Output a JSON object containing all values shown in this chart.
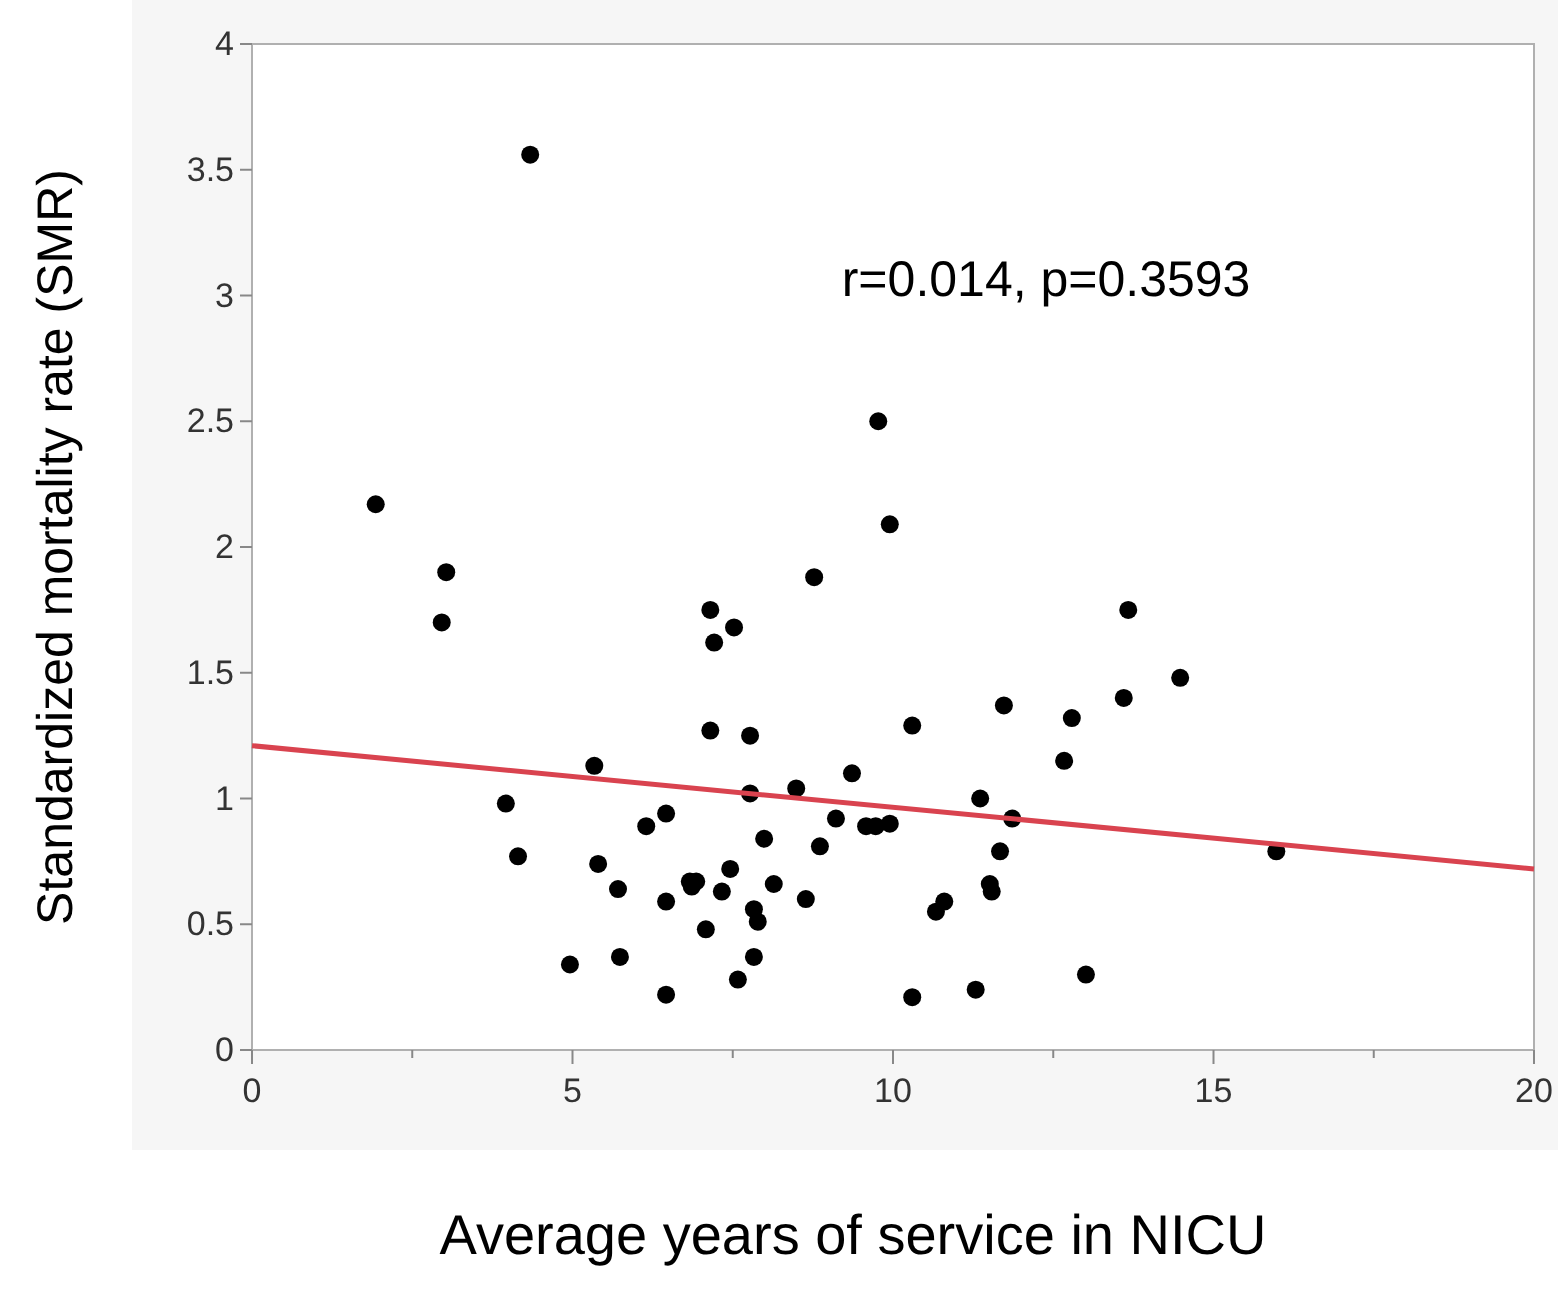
{
  "chart_data": {
    "type": "scatter",
    "xlabel": "Average years of service in NICU",
    "ylabel": "Standardized mortality rate (SMR)",
    "annotations": [
      "r=0.014, p=0.3593"
    ],
    "xlim": [
      0,
      20
    ],
    "ylim": [
      0,
      4
    ],
    "xticks": [
      0,
      {
        "value": 2.5,
        "label": null
      },
      5,
      {
        "value": 7.5,
        "label": null
      },
      10,
      {
        "value": 12.5,
        "label": null
      },
      15,
      {
        "value": 17.5,
        "label": null
      },
      20
    ],
    "yticks": [
      0,
      0.5,
      1,
      1.5,
      2,
      2.5,
      3,
      3.5,
      4
    ],
    "grid": false,
    "series": [
      {
        "marker": "circle",
        "color": "#000000",
        "x": [
          1.93,
          3.03,
          2.96,
          4.34,
          3.96,
          4.15,
          5.34,
          5.4,
          5.71,
          4.96,
          5.74,
          6.15,
          6.46,
          6.46,
          6.46,
          6.83,
          6.93,
          6.86,
          7.08,
          7.15,
          7.21,
          7.15,
          7.33,
          7.46,
          7.52,
          7.58,
          7.77,
          7.77,
          7.83,
          7.89,
          7.83,
          7.99,
          8.14,
          8.49,
          8.64,
          8.77,
          8.86,
          9.11,
          9.36,
          9.58,
          9.73,
          9.95,
          9.77,
          9.95,
          10.3,
          10.3,
          11.36,
          11.29,
          11.73,
          11.86,
          11.67,
          11.51,
          11.54,
          10.67,
          10.8,
          12.67,
          12.79,
          13.01,
          13.6,
          13.67,
          14.48,
          15.98
        ],
        "values": [
          2.17,
          1.9,
          1.7,
          3.56,
          0.98,
          0.77,
          1.13,
          0.74,
          0.64,
          0.34,
          0.37,
          0.89,
          0.94,
          0.59,
          0.22,
          0.67,
          0.67,
          0.65,
          0.48,
          1.75,
          1.62,
          1.27,
          0.63,
          0.72,
          1.68,
          0.28,
          1.25,
          1.02,
          0.56,
          0.51,
          0.37,
          0.84,
          0.66,
          1.04,
          0.6,
          1.88,
          0.81,
          0.92,
          1.1,
          0.89,
          0.89,
          0.9,
          2.5,
          2.09,
          1.29,
          0.21,
          1.0,
          0.24,
          1.37,
          0.92,
          0.79,
          0.66,
          0.63,
          0.55,
          0.59,
          1.15,
          1.32,
          0.3,
          1.4,
          1.75,
          1.48,
          0.79
        ]
      },
      {
        "type": "line",
        "color": "#d9434f",
        "x": [
          0,
          20
        ],
        "values": [
          1.21,
          0.72
        ]
      }
    ]
  }
}
